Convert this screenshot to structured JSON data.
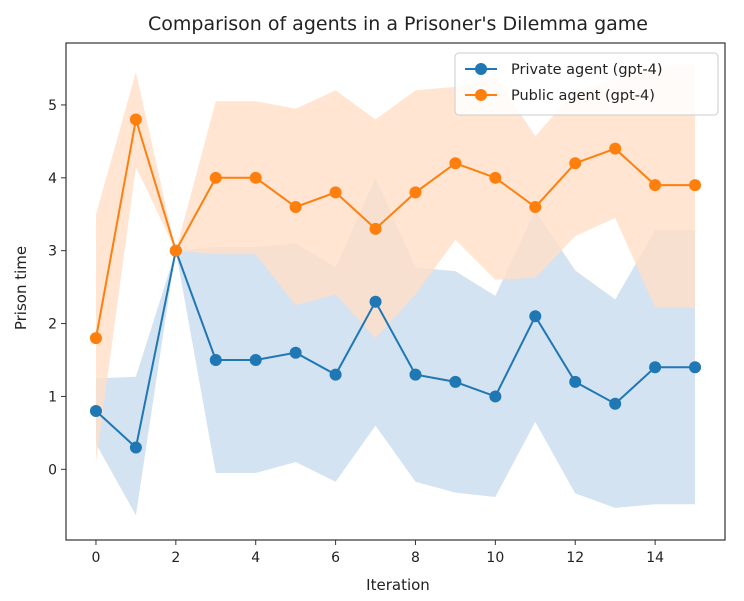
{
  "chart_data": {
    "type": "line",
    "title": "Comparison of agents in a Prisoner's Dilemma game",
    "xlabel": "Iteration",
    "ylabel": "Prison time",
    "x": [
      0,
      1,
      2,
      3,
      4,
      5,
      6,
      7,
      8,
      9,
      10,
      11,
      12,
      13,
      14,
      15
    ],
    "xlim": [
      -0.75,
      15.75
    ],
    "ylim": [
      -0.97,
      5.85
    ],
    "xticks": [
      0,
      2,
      4,
      6,
      8,
      10,
      12,
      14
    ],
    "yticks": [
      0,
      1,
      2,
      3,
      4,
      5
    ],
    "legend_position": "top-right",
    "grid": false,
    "series": [
      {
        "name": "Private agent (gpt-4)",
        "color": "#1f77b4",
        "band_color": "#c9dcee",
        "values": [
          0.8,
          0.3,
          3.0,
          1.5,
          1.5,
          1.6,
          1.3,
          2.3,
          1.3,
          1.2,
          1.0,
          2.1,
          1.2,
          0.9,
          1.4,
          1.4
        ],
        "lower": [
          0.35,
          -0.63,
          3.0,
          -0.05,
          -0.05,
          0.1,
          -0.17,
          0.6,
          -0.17,
          -0.32,
          -0.38,
          0.65,
          -0.33,
          -0.53,
          -0.48,
          -0.48
        ],
        "upper": [
          1.25,
          1.27,
          3.0,
          3.05,
          3.05,
          3.1,
          2.77,
          4.0,
          2.77,
          2.72,
          2.38,
          3.55,
          2.73,
          2.33,
          3.28,
          3.28
        ]
      },
      {
        "name": "Public agent (gpt-4)",
        "color": "#ff7f0e",
        "band_color": "#ffdec7",
        "values": [
          1.8,
          4.8,
          3.0,
          4.0,
          4.0,
          3.6,
          3.8,
          3.3,
          3.8,
          4.2,
          4.0,
          3.6,
          4.2,
          4.4,
          3.9,
          3.9
        ],
        "lower": [
          0.1,
          4.15,
          3.0,
          2.95,
          2.95,
          2.25,
          2.4,
          1.8,
          2.4,
          3.15,
          2.6,
          2.63,
          3.2,
          3.45,
          2.22,
          2.22
        ],
        "upper": [
          3.5,
          5.45,
          3.0,
          5.05,
          5.05,
          4.95,
          5.2,
          4.8,
          5.2,
          5.25,
          5.4,
          4.57,
          5.2,
          5.35,
          5.55,
          5.55
        ]
      }
    ]
  }
}
